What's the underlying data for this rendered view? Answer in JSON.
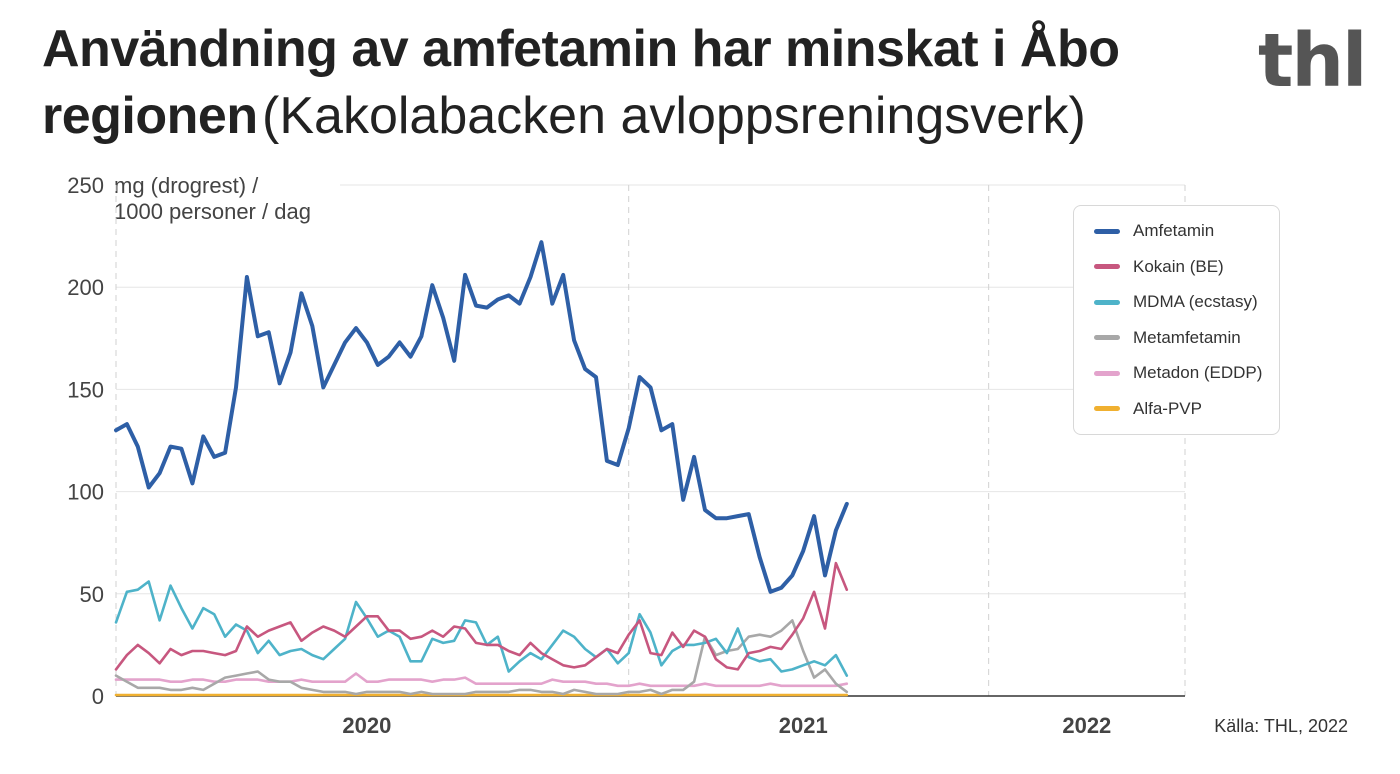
{
  "title": {
    "bold": "Användning av amfetamin har minskat i Åbo regionen",
    "normal": "(Kakolabacken avloppsreningsverk)"
  },
  "logo": "thl",
  "source": "Källa: THL, 2022",
  "colors": {
    "amfetamin": "#2e5fa6",
    "kokain": "#c7577f",
    "mdma": "#4eb3c9",
    "metamfetamin": "#a8a8a8",
    "metadon": "#e3a3cc",
    "alfapvp": "#f0b030"
  },
  "chart_data": {
    "type": "line",
    "ylabel": "mg (drogrest) / 1000 personer / dag",
    "ylim": [
      0,
      250
    ],
    "yticks": [
      0,
      50,
      100,
      150,
      200,
      250
    ],
    "x_index_range": [
      0,
      98
    ],
    "year_labels": [
      {
        "label": "2020",
        "x": 23
      },
      {
        "label": "2021",
        "x": 63
      },
      {
        "label": "2022",
        "x": 89
      }
    ],
    "year_dividers": [
      0,
      47,
      80,
      98
    ],
    "legend_position": "top-right",
    "grid": true,
    "series": [
      {
        "name": "Amfetamin",
        "color_key": "amfetamin",
        "values": [
          130,
          133,
          122,
          102,
          109,
          122,
          121,
          104,
          127,
          117,
          119,
          151,
          205,
          176,
          178,
          153,
          168,
          197,
          181,
          151,
          162,
          173,
          180,
          173,
          162,
          166,
          173,
          166,
          176,
          201,
          185,
          164,
          206,
          191,
          190,
          194,
          196,
          192,
          205,
          222,
          192,
          206,
          174,
          160,
          156,
          115,
          113,
          131,
          156,
          151,
          130,
          133,
          96,
          117,
          91,
          87,
          87,
          88,
          89,
          68,
          51,
          53,
          59,
          71,
          88,
          59,
          81,
          94
        ]
      },
      {
        "name": "Kokain (BE)",
        "color_key": "kokain",
        "values": [
          13,
          20,
          25,
          21,
          16,
          23,
          20,
          22,
          22,
          21,
          20,
          22,
          34,
          29,
          32,
          34,
          36,
          27,
          31,
          34,
          32,
          29,
          34,
          39,
          39,
          32,
          32,
          28,
          29,
          32,
          29,
          34,
          33,
          26,
          25,
          25,
          22,
          20,
          26,
          21,
          18,
          15,
          14,
          15,
          19,
          23,
          21,
          30,
          37,
          21,
          20,
          31,
          24,
          32,
          29,
          18,
          14,
          13,
          21,
          22,
          24,
          23,
          30,
          38,
          51,
          33,
          65,
          52
        ]
      },
      {
        "name": "MDMA (ecstasy)",
        "color_key": "mdma",
        "values": [
          36,
          51,
          52,
          56,
          37,
          54,
          43,
          33,
          43,
          40,
          29,
          35,
          32,
          21,
          27,
          20,
          22,
          23,
          20,
          18,
          23,
          28,
          46,
          38,
          29,
          32,
          29,
          17,
          17,
          28,
          26,
          27,
          37,
          36,
          25,
          29,
          12,
          17,
          21,
          18,
          25,
          32,
          29,
          23,
          19,
          23,
          16,
          21,
          40,
          31,
          15,
          22,
          25,
          25,
          26,
          28,
          21,
          33,
          19,
          17,
          18,
          12,
          13,
          15,
          17,
          15,
          20,
          10
        ]
      },
      {
        "name": "Metamfetamin",
        "color_key": "metamfetamin",
        "values": [
          10,
          7,
          4,
          4,
          4,
          3,
          3,
          4,
          3,
          6,
          9,
          10,
          11,
          12,
          8,
          7,
          7,
          4,
          3,
          2,
          2,
          2,
          1,
          2,
          2,
          2,
          2,
          1,
          2,
          1,
          1,
          1,
          1,
          2,
          2,
          2,
          2,
          3,
          3,
          2,
          2,
          1,
          3,
          2,
          1,
          1,
          1,
          2,
          2,
          3,
          1,
          3,
          3,
          7,
          29,
          20,
          22,
          23,
          29,
          30,
          29,
          32,
          37,
          22,
          9,
          13,
          6,
          2
        ]
      },
      {
        "name": "Metadon (EDDP)",
        "color_key": "metadon",
        "values": [
          8,
          8,
          8,
          8,
          8,
          7,
          7,
          8,
          8,
          7,
          7,
          8,
          8,
          8,
          7,
          7,
          7,
          8,
          7,
          7,
          7,
          7,
          11,
          7,
          7,
          8,
          8,
          8,
          8,
          7,
          8,
          8,
          9,
          6,
          6,
          6,
          6,
          6,
          6,
          6,
          8,
          7,
          7,
          7,
          6,
          6,
          5,
          5,
          6,
          5,
          5,
          5,
          5,
          5,
          6,
          5,
          5,
          5,
          5,
          5,
          6,
          5,
          5,
          5,
          5,
          5,
          5,
          6
        ]
      },
      {
        "name": "Alfa-PVP",
        "color_key": "alfapvp",
        "values": [
          0.5,
          0.5,
          0.5,
          0.5,
          0.5,
          0.5,
          0.5,
          0.5,
          0.5,
          0.5,
          0.5,
          0.5,
          0.5,
          0.5,
          0.5,
          0.5,
          0.5,
          0.5,
          0.5,
          0.5,
          0.5,
          0.5,
          0.5,
          0.5,
          0.5,
          0.5,
          0.5,
          0.5,
          0.5,
          0.5,
          0.5,
          0.5,
          0.5,
          0.5,
          0.5,
          0.5,
          0.5,
          0.5,
          0.5,
          0.5,
          0.5,
          0.5,
          0.5,
          0.5,
          0.5,
          0.5,
          0.5,
          0.5,
          0.5,
          0.5,
          0.5,
          0.5,
          0.5,
          0.5,
          0.5,
          0.5,
          0.5,
          0.5,
          0.5,
          0.5,
          0.5,
          0.5,
          0.5,
          0.5,
          0.5,
          0.5,
          0.5,
          0.5
        ]
      }
    ]
  }
}
